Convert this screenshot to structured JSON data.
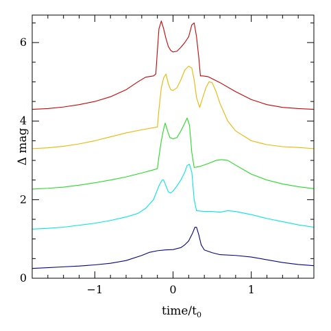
{
  "chart_data": {
    "type": "line",
    "title": "",
    "xlabel": "time/t",
    "xlabel_sub": "0",
    "ylabel": "Δ mag",
    "xlim": [
      -1.8,
      1.8
    ],
    "ylim": [
      0,
      6.7
    ],
    "x_ticks": [
      -1,
      0,
      1
    ],
    "x_tick_labels": [
      "−1",
      "0",
      "1"
    ],
    "y_ticks": [
      0,
      2,
      4,
      6
    ],
    "y_tick_labels": [
      "0",
      "2",
      "4",
      "6"
    ],
    "x_minor_step": 0.2,
    "y_minor_step": 0.5,
    "grid": false,
    "legend": "none",
    "series": [
      {
        "color": "#00008b",
        "x": [
          -1.8,
          -1.6,
          -1.4,
          -1.2,
          -1.0,
          -0.8,
          -0.6,
          -0.4,
          -0.3,
          -0.2,
          -0.1,
          0.0,
          0.1,
          0.15,
          0.2,
          0.25,
          0.28,
          0.3,
          0.33,
          0.36,
          0.4,
          0.5,
          0.6,
          0.8,
          1.0,
          1.2,
          1.4,
          1.6,
          1.8
        ],
        "y": [
          0.25,
          0.27,
          0.29,
          0.31,
          0.34,
          0.38,
          0.45,
          0.58,
          0.66,
          0.7,
          0.72,
          0.73,
          0.78,
          0.85,
          0.95,
          1.15,
          1.3,
          1.3,
          1.1,
          0.85,
          0.72,
          0.65,
          0.6,
          0.58,
          0.54,
          0.47,
          0.4,
          0.35,
          0.32
        ]
      },
      {
        "color": "#00e5e5",
        "x": [
          -1.8,
          -1.6,
          -1.4,
          -1.2,
          -1.0,
          -0.8,
          -0.6,
          -0.45,
          -0.35,
          -0.25,
          -0.18,
          -0.14,
          -0.12,
          -0.09,
          -0.06,
          -0.03,
          0.0,
          0.05,
          0.1,
          0.15,
          0.18,
          0.21,
          0.24,
          0.27,
          0.3,
          0.4,
          0.5,
          0.6,
          0.7,
          0.8,
          1.0,
          1.2,
          1.4,
          1.6,
          1.8
        ],
        "y": [
          1.25,
          1.27,
          1.3,
          1.35,
          1.4,
          1.47,
          1.56,
          1.65,
          1.78,
          2.0,
          2.35,
          2.5,
          2.5,
          2.35,
          2.2,
          2.17,
          2.22,
          2.35,
          2.5,
          2.7,
          2.87,
          2.9,
          2.7,
          2.0,
          1.72,
          1.7,
          1.7,
          1.68,
          1.72,
          1.7,
          1.62,
          1.52,
          1.44,
          1.36,
          1.3
        ]
      },
      {
        "color": "#22dd22",
        "x": [
          -1.8,
          -1.6,
          -1.4,
          -1.2,
          -1.0,
          -0.8,
          -0.6,
          -0.4,
          -0.25,
          -0.2,
          -0.18,
          -0.15,
          -0.12,
          -0.1,
          -0.07,
          -0.04,
          0.0,
          0.05,
          0.1,
          0.15,
          0.18,
          0.21,
          0.24,
          0.27,
          0.3,
          0.35,
          0.45,
          0.55,
          0.62,
          0.7,
          0.8,
          1.0,
          1.2,
          1.4,
          1.6,
          1.8
        ],
        "y": [
          2.27,
          2.29,
          2.32,
          2.37,
          2.43,
          2.5,
          2.58,
          2.68,
          2.76,
          2.79,
          3.1,
          3.5,
          3.8,
          3.95,
          3.75,
          3.58,
          3.55,
          3.58,
          3.75,
          3.95,
          4.08,
          3.9,
          3.2,
          2.82,
          2.83,
          2.85,
          2.92,
          3.0,
          3.02,
          3.0,
          2.88,
          2.65,
          2.5,
          2.4,
          2.33,
          2.28
        ]
      },
      {
        "color": "#f0b400",
        "x": [
          -1.8,
          -1.6,
          -1.4,
          -1.2,
          -1.0,
          -0.8,
          -0.6,
          -0.4,
          -0.2,
          -0.18,
          -0.15,
          -0.12,
          -0.09,
          -0.06,
          -0.03,
          0.0,
          0.05,
          0.1,
          0.15,
          0.2,
          0.24,
          0.27,
          0.3,
          0.34,
          0.38,
          0.42,
          0.46,
          0.5,
          0.55,
          0.6,
          0.7,
          0.8,
          1.0,
          1.2,
          1.4,
          1.6,
          1.8
        ],
        "y": [
          3.3,
          3.32,
          3.36,
          3.42,
          3.5,
          3.6,
          3.7,
          3.78,
          3.85,
          4.3,
          4.85,
          5.1,
          5.2,
          4.95,
          4.8,
          4.78,
          4.85,
          5.05,
          5.3,
          5.4,
          5.35,
          5.05,
          4.6,
          4.35,
          4.6,
          4.85,
          5.0,
          4.98,
          4.75,
          4.45,
          4.0,
          3.75,
          3.5,
          3.4,
          3.35,
          3.33,
          3.3
        ]
      },
      {
        "color": "#cc0000",
        "x": [
          -1.8,
          -1.6,
          -1.4,
          -1.2,
          -1.0,
          -0.8,
          -0.6,
          -0.45,
          -0.35,
          -0.25,
          -0.22,
          -0.2,
          -0.18,
          -0.15,
          -0.12,
          -0.09,
          -0.06,
          -0.03,
          0.0,
          0.05,
          0.1,
          0.15,
          0.2,
          0.24,
          0.27,
          0.3,
          0.33,
          0.35,
          0.38,
          0.45,
          0.6,
          0.8,
          1.0,
          1.2,
          1.4,
          1.6,
          1.8
        ],
        "y": [
          4.3,
          4.32,
          4.36,
          4.42,
          4.5,
          4.62,
          4.8,
          5.0,
          5.12,
          5.15,
          5.2,
          5.8,
          6.35,
          6.55,
          6.35,
          6.1,
          5.9,
          5.8,
          5.76,
          5.78,
          5.88,
          6.0,
          6.15,
          6.45,
          6.5,
          6.15,
          5.6,
          5.15,
          5.15,
          5.13,
          4.98,
          4.75,
          4.55,
          4.42,
          4.35,
          4.32,
          4.3
        ]
      }
    ]
  }
}
